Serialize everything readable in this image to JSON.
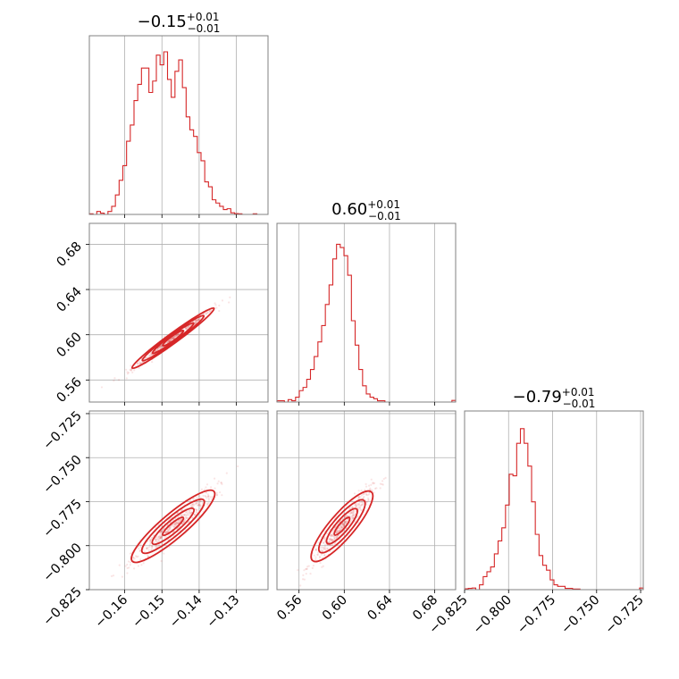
{
  "chart_data": {
    "type": "corner",
    "color": "#d62728",
    "grid": true,
    "parameters": [
      {
        "median": "−0.15",
        "err_plus": "+0.01",
        "err_minus": "−0.01",
        "range": [
          -0.1695,
          -0.1215
        ],
        "ticks": [
          -0.16,
          -0.15,
          -0.14,
          -0.13
        ],
        "tick_labels": [
          "−0.16",
          "−0.15",
          "−0.14",
          "−0.13"
        ]
      },
      {
        "median": "0.60",
        "err_plus": "+0.01",
        "err_minus": "−0.01",
        "range": [
          0.5405,
          0.6985
        ],
        "ticks": [
          0.56,
          0.6,
          0.64,
          0.68
        ],
        "tick_labels": [
          "0.56",
          "0.60",
          "0.64",
          "0.68"
        ]
      },
      {
        "median": "−0.79",
        "err_plus": "+0.01",
        "err_minus": "−0.01",
        "range": [
          -0.825,
          -0.7235
        ],
        "ticks": [
          -0.825,
          -0.8,
          -0.775,
          -0.75,
          -0.725
        ],
        "tick_labels": [
          "−0.825",
          "−0.800",
          "−0.775",
          "−0.750",
          "−0.725"
        ]
      }
    ],
    "histograms": [
      [
        0.004,
        0.0,
        0.018,
        0.008,
        0.0,
        0.018,
        0.05,
        0.12,
        0.21,
        0.3,
        0.45,
        0.55,
        0.7,
        0.8,
        0.9,
        0.9,
        0.75,
        0.82,
        0.98,
        0.92,
        1.0,
        0.83,
        0.72,
        0.88,
        0.95,
        0.78,
        0.6,
        0.52,
        0.48,
        0.38,
        0.33,
        0.2,
        0.17,
        0.09,
        0.07,
        0.05,
        0.03,
        0.035,
        0.01,
        0.005,
        0.004,
        0.0,
        0.0,
        0.0,
        0.004,
        0.0,
        0.0,
        0.0
      ],
      [
        0.008,
        0.008,
        0.0,
        0.015,
        0.008,
        0.03,
        0.07,
        0.09,
        0.14,
        0.2,
        0.28,
        0.37,
        0.47,
        0.6,
        0.72,
        0.88,
        0.97,
        0.95,
        0.9,
        0.78,
        0.5,
        0.35,
        0.2,
        0.1,
        0.05,
        0.03,
        0.02,
        0.008,
        0.008,
        0.0,
        0.0,
        0.0,
        0.0,
        0.0,
        0.0,
        0.0,
        0.0,
        0.0,
        0.0,
        0.0,
        0.0,
        0.0,
        0.0,
        0.0,
        0.0,
        0.0,
        0.0,
        0.01
      ],
      [
        0.005,
        0.008,
        0.01,
        0.0,
        0.03,
        0.08,
        0.11,
        0.14,
        0.22,
        0.3,
        0.38,
        0.52,
        0.71,
        0.7,
        0.9,
        0.99,
        0.9,
        0.76,
        0.54,
        0.34,
        0.21,
        0.15,
        0.12,
        0.06,
        0.03,
        0.02,
        0.02,
        0.008,
        0.008,
        0.004,
        0.004,
        0.0,
        0.0,
        0.0,
        0.0,
        0.0,
        0.0,
        0.0,
        0.0,
        0.0,
        0.0,
        0.0,
        0.0,
        0.0,
        0.0,
        0.0,
        0.0,
        0.01
      ]
    ],
    "correlations": {
      "x_slope_y": 2.4,
      "x_slope_z": 1.8,
      "y_slope_z": 0.75
    }
  }
}
